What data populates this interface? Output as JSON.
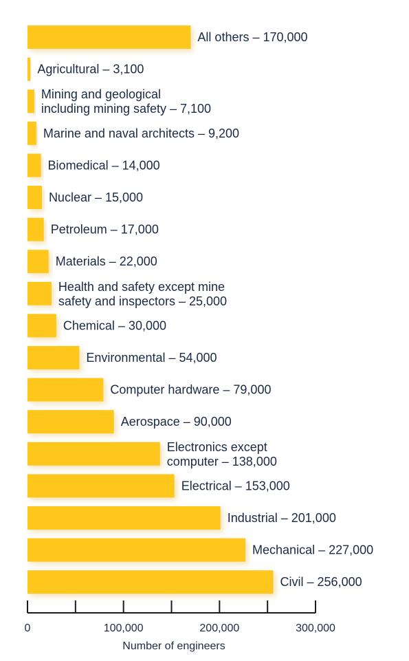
{
  "chart_data": {
    "type": "bar",
    "orientation": "horizontal",
    "categories": [
      "All others – 170,000",
      "Agricultural – 3,100",
      "Mining and geological\nincluding mining safety – 7,100",
      "Marine and naval architects – 9,200",
      "Biomedical – 14,000",
      "Nuclear – 15,000",
      "Petroleum – 17,000",
      "Materials – 22,000",
      "Health and safety except mine\nsafety and inspectors – 25,000",
      "Chemical – 30,000",
      "Environmental – 54,000",
      "Computer hardware – 79,000",
      "Aerospace – 90,000",
      "Electronics except\ncomputer – 138,000",
      "Electrical – 153,000",
      "Industrial – 201,000",
      "Mechanical – 227,000",
      "Civil – 256,000"
    ],
    "values": [
      170000,
      3100,
      7100,
      9200,
      14000,
      15000,
      17000,
      22000,
      25000,
      30000,
      54000,
      79000,
      90000,
      138000,
      153000,
      201000,
      227000,
      256000
    ],
    "xlabel": "Number of engineers",
    "xlim": [
      0,
      300000
    ],
    "x_ticks": [
      0,
      50000,
      100000,
      150000,
      200000,
      250000,
      300000
    ],
    "x_tick_labels": [
      "0",
      "",
      "100,000",
      "",
      "200,000",
      "",
      "300,000"
    ],
    "bar_color": "#ffc61a",
    "grid": false
  }
}
